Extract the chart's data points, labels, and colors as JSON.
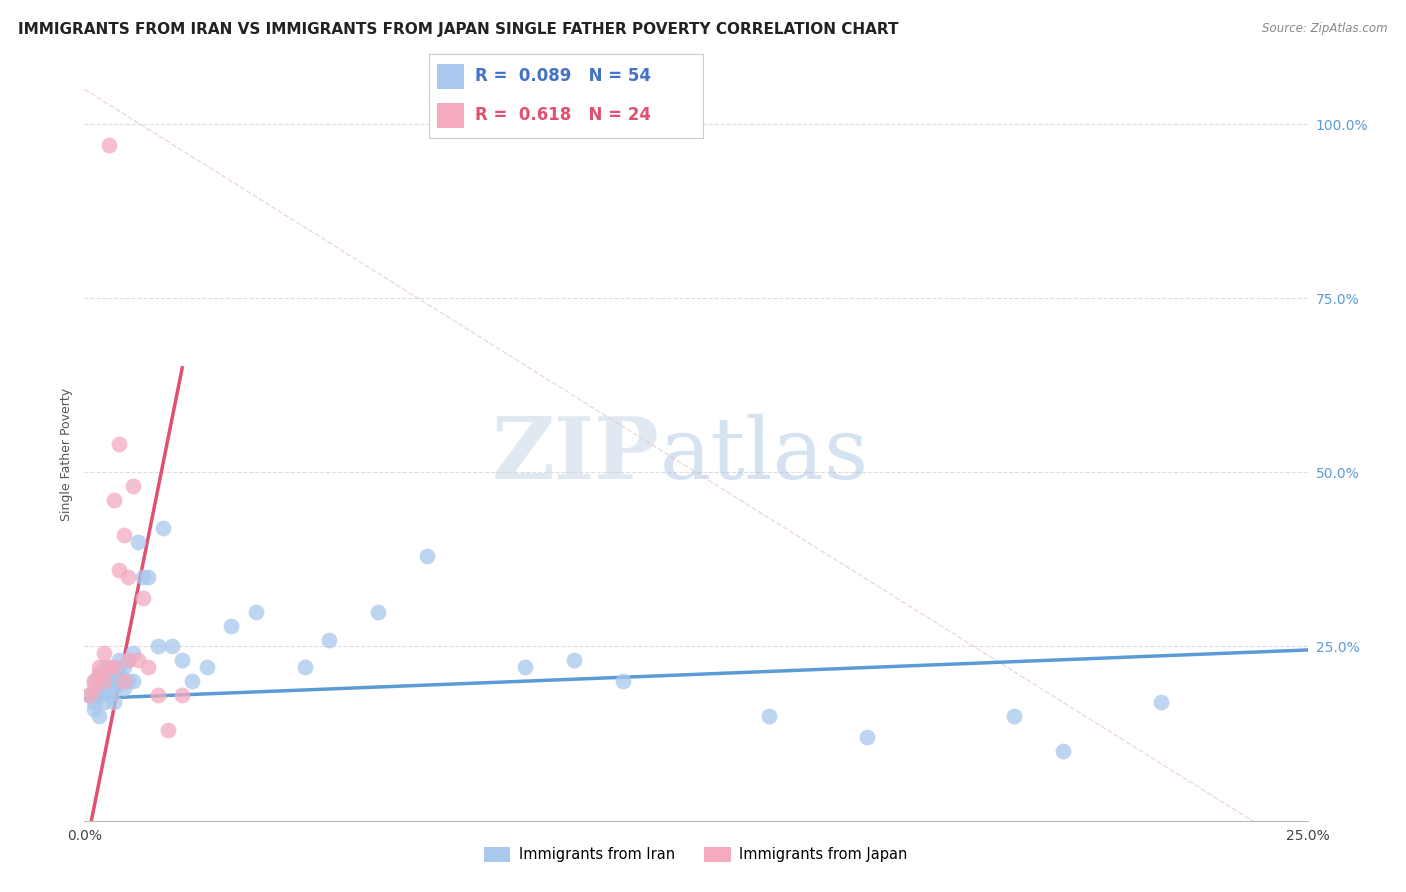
{
  "title": "IMMIGRANTS FROM IRAN VS IMMIGRANTS FROM JAPAN SINGLE FATHER POVERTY CORRELATION CHART",
  "source": "Source: ZipAtlas.com",
  "ylabel": "Single Father Poverty",
  "xlim": [
    0.0,
    0.25
  ],
  "ylim": [
    0.0,
    1.05
  ],
  "iran_color": "#A8C8ED",
  "japan_color": "#F4AABF",
  "iran_line_color": "#5B9BD5",
  "japan_line_color": "#E05070",
  "ref_line_color": "#E0CCCC",
  "watermark_zip": "ZIP",
  "watermark_atlas": "atlas",
  "background_color": "#FFFFFF",
  "grid_color": "#DDDDDD",
  "iran_x": [
    0.001,
    0.002,
    0.002,
    0.002,
    0.003,
    0.003,
    0.003,
    0.003,
    0.003,
    0.004,
    0.004,
    0.004,
    0.004,
    0.005,
    0.005,
    0.005,
    0.005,
    0.006,
    0.006,
    0.006,
    0.006,
    0.007,
    0.007,
    0.007,
    0.008,
    0.008,
    0.008,
    0.009,
    0.009,
    0.01,
    0.01,
    0.011,
    0.012,
    0.013,
    0.015,
    0.016,
    0.018,
    0.02,
    0.022,
    0.025,
    0.03,
    0.035,
    0.045,
    0.05,
    0.06,
    0.07,
    0.09,
    0.1,
    0.11,
    0.14,
    0.16,
    0.19,
    0.2,
    0.22
  ],
  "iran_y": [
    0.18,
    0.17,
    0.16,
    0.2,
    0.15,
    0.18,
    0.2,
    0.21,
    0.19,
    0.17,
    0.2,
    0.22,
    0.19,
    0.18,
    0.21,
    0.19,
    0.2,
    0.17,
    0.19,
    0.21,
    0.2,
    0.22,
    0.23,
    0.21,
    0.2,
    0.22,
    0.19,
    0.23,
    0.2,
    0.2,
    0.24,
    0.4,
    0.35,
    0.35,
    0.25,
    0.42,
    0.25,
    0.23,
    0.2,
    0.22,
    0.28,
    0.3,
    0.22,
    0.26,
    0.3,
    0.38,
    0.22,
    0.23,
    0.2,
    0.15,
    0.12,
    0.15,
    0.1,
    0.17
  ],
  "japan_x": [
    0.001,
    0.002,
    0.002,
    0.003,
    0.003,
    0.004,
    0.004,
    0.005,
    0.005,
    0.006,
    0.006,
    0.007,
    0.007,
    0.008,
    0.008,
    0.009,
    0.009,
    0.01,
    0.011,
    0.012,
    0.013,
    0.015,
    0.017,
    0.02
  ],
  "japan_y": [
    0.18,
    0.19,
    0.2,
    0.21,
    0.22,
    0.2,
    0.24,
    0.97,
    0.22,
    0.22,
    0.46,
    0.36,
    0.54,
    0.2,
    0.41,
    0.35,
    0.23,
    0.48,
    0.23,
    0.32,
    0.22,
    0.18,
    0.13,
    0.18
  ],
  "title_fontsize": 11,
  "axis_label_fontsize": 9,
  "tick_fontsize": 10,
  "legend_fontsize": 12
}
